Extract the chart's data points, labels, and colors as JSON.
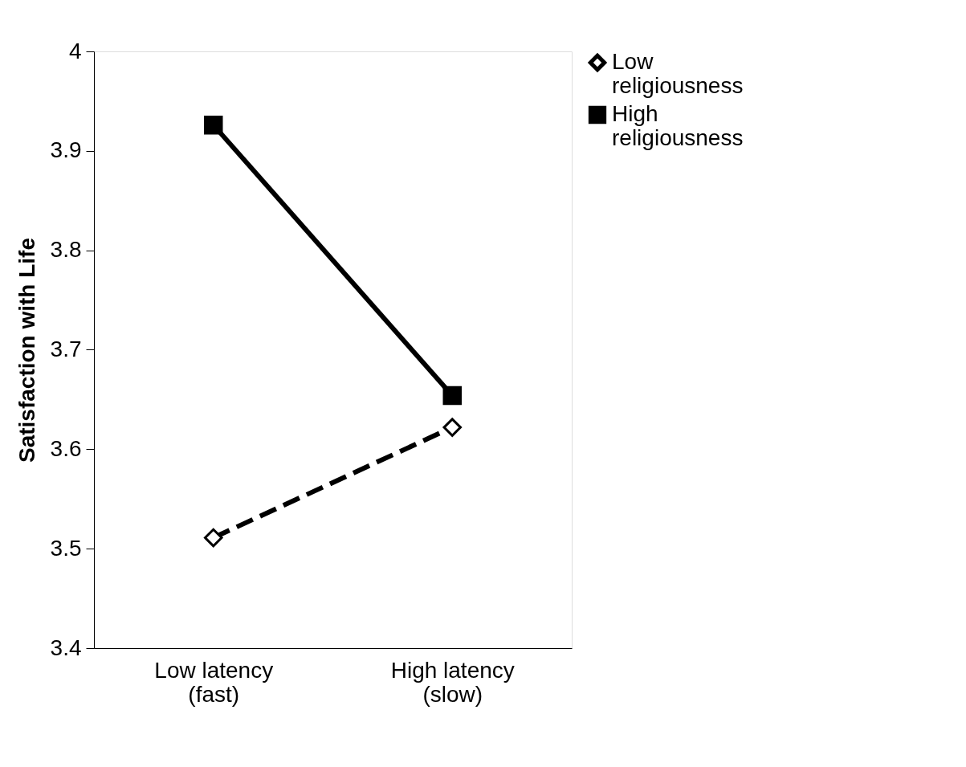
{
  "chart_data": {
    "type": "line",
    "ylabel": "Satisfaction with Life",
    "categories": [
      "Low latency\n(fast)",
      "High latency\n(slow)"
    ],
    "series": [
      {
        "name": "Low religiousness",
        "color": "#000000",
        "values": [
          3.511,
          3.622
        ],
        "marker": "diamond",
        "line_style": "dashed"
      },
      {
        "name": "High religiousness",
        "color": "#000000",
        "values": [
          3.926,
          3.654
        ],
        "marker": "square",
        "line_style": "solid"
      }
    ],
    "ylim": [
      3.4,
      4
    ],
    "yticks": [
      3.4,
      3.5,
      3.6,
      3.7,
      3.8,
      3.9,
      4
    ],
    "grid": false,
    "legend": "right"
  }
}
